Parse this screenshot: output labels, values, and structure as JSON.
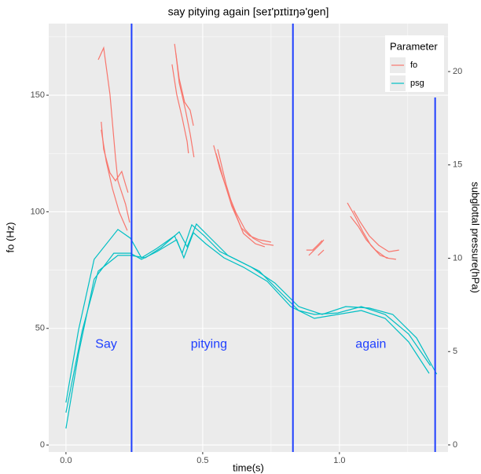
{
  "chart_data": {
    "type": "line",
    "title": "say pitying again [seɪ'pɪtiɪŋə'gen]",
    "x_label": "time(s)",
    "y_label": "fo (Hz)",
    "y2_label": "subglottal pressure(hPa)",
    "legend_title": "Parameter",
    "legend": "right-top",
    "grid": true,
    "xlim": [
      -0.063,
      1.397
    ],
    "ylim": [
      -3,
      180.7
    ],
    "y2lim": [
      -0.38,
      22.57
    ],
    "xticks": [
      {
        "value": 0,
        "label": "0.0"
      },
      {
        "value": 0.5,
        "label": "0.5"
      },
      {
        "value": 1,
        "label": "1.0"
      }
    ],
    "yticks": [
      0,
      50,
      100,
      150
    ],
    "y2ticks": [
      0,
      5,
      10,
      15,
      20
    ],
    "xminor": [
      0.25,
      0.75,
      1.25
    ],
    "yminor": [
      25,
      75,
      125,
      175
    ],
    "vline_color": "#1f3fff",
    "vlines": [
      {
        "x": 0.24
      },
      {
        "x": 0.83
      },
      {
        "x": 1.35,
        "ymax": 149
      }
    ],
    "annotations": [
      {
        "text": "Say",
        "x": 0.147,
        "y": 43
      },
      {
        "text": "pitying",
        "x": 0.523,
        "y": 43
      },
      {
        "text": "again",
        "x": 1.115,
        "y": 43
      }
    ],
    "series": [
      {
        "name": "fo",
        "color": "#F8766D",
        "axis": "y",
        "x": [
          0.118,
          0.138,
          0.161,
          0.181,
          0.19,
          0.218,
          0.233,
          null,
          0.129,
          0.138,
          0.161,
          0.181,
          0.204,
          0.218,
          0.227,
          null,
          0.129,
          0.147,
          0.17,
          0.195,
          0.224,
          null,
          0.397,
          0.414,
          0.434,
          0.454,
          0.466,
          null,
          0.388,
          0.405,
          0.425,
          0.443,
          0.448,
          null,
          0.402,
          0.414,
          0.437,
          0.454,
          0.468,
          null,
          0.54,
          0.563,
          0.592,
          0.621,
          0.655,
          0.684,
          0.721,
          0.759,
          null,
          0.549,
          0.578,
          0.606,
          0.641,
          0.672,
          0.707,
          0.75,
          null,
          0.555,
          0.586,
          0.612,
          0.649,
          0.693,
          0.727,
          null,
          0.879,
          0.902,
          0.92,
          0.937,
          null,
          0.888,
          0.908,
          0.931,
          0.943,
          null,
          0.922,
          0.943,
          null,
          1.029,
          1.057,
          1.086,
          1.115,
          1.149,
          1.178,
          null,
          1.052,
          1.075,
          1.109,
          1.144,
          1.181,
          1.218,
          null,
          1.04,
          1.069,
          1.098,
          1.132,
          1.172,
          1.207
        ],
        "values": [
          165.2,
          170.3,
          150.4,
          123.4,
          113.3,
          103.2,
          95.4,
          null,
          138.6,
          126.8,
          116.7,
          113.3,
          117.3,
          111.6,
          108.2,
          null,
          135.2,
          121.7,
          109.9,
          99.8,
          92.0,
          null,
          172.0,
          157.1,
          147.0,
          143.6,
          136.9,
          null,
          163.2,
          150.4,
          140.3,
          130.1,
          125.1,
          null,
          167.9,
          155.4,
          143.6,
          133.5,
          123.4,
          null,
          128.5,
          118.3,
          108.2,
          99.8,
          92.4,
          88.7,
          86.3,
          85.6,
          null,
          125.1,
          113.3,
          102.5,
          93.1,
          89.7,
          88.0,
          87.0,
          null,
          126.8,
          111.6,
          101.5,
          90.7,
          86.3,
          85.0,
          null,
          83.6,
          83.6,
          85.6,
          87.7,
          null,
          81.3,
          83.6,
          86.3,
          88.0,
          null,
          81.3,
          83.6,
          null,
          103.8,
          98.1,
          91.4,
          85.6,
          81.3,
          80.2,
          null,
          100.5,
          95.8,
          89.7,
          85.6,
          82.9,
          83.6,
          null,
          98.1,
          93.7,
          88.0,
          83.6,
          80.2,
          79.6
        ]
      },
      {
        "name": "psg",
        "color": "#00BFC4",
        "axis": "y2",
        "x": [
          0,
          0.046,
          0.103,
          0.19,
          0.236,
          0.276,
          0.333,
          0.397,
          0.425,
          0.46,
          0.506,
          0.563,
          0.621,
          0.707,
          0.793,
          0.851,
          0.908,
          0.994,
          1.08,
          1.167,
          1.253,
          1.333,
          null,
          0,
          0.046,
          0.103,
          0.175,
          0.236,
          0.276,
          0.333,
          0.405,
          0.431,
          0.466,
          0.511,
          0.578,
          0.649,
          0.736,
          0.822,
          0.908,
          0.994,
          1.08,
          1.167,
          1.253,
          1.328,
          null,
          0,
          0.06,
          0.118,
          0.19,
          0.236,
          0.29,
          0.348,
          0.414,
          0.443,
          0.477,
          0.52,
          0.592,
          0.678,
          0.764,
          0.851,
          0.937,
          1.023,
          1.109,
          1.195,
          1.282,
          1.356
        ],
        "values": [
          2.27,
          6.15,
          9.94,
          11.54,
          11.07,
          10.02,
          10.53,
          11.2,
          10.27,
          11.79,
          11.2,
          10.36,
          9.94,
          9.31,
          8.04,
          7.2,
          6.99,
          7.07,
          7.41,
          6.99,
          5.94,
          4.25,
          null,
          0.88,
          4.88,
          8.88,
          10.27,
          10.27,
          9.94,
          10.36,
          10.99,
          10.02,
          11.37,
          10.78,
          10.02,
          9.52,
          8.76,
          7.41,
          6.78,
          6.99,
          7.2,
          6.78,
          5.52,
          3.83,
          null,
          1.73,
          6.15,
          9.31,
          10.15,
          10.15,
          10.02,
          10.57,
          11.41,
          10.61,
          11.83,
          11.2,
          10.15,
          9.52,
          8.67,
          7.41,
          6.99,
          7.41,
          7.33,
          6.99,
          5.73,
          3.79
        ]
      }
    ]
  }
}
